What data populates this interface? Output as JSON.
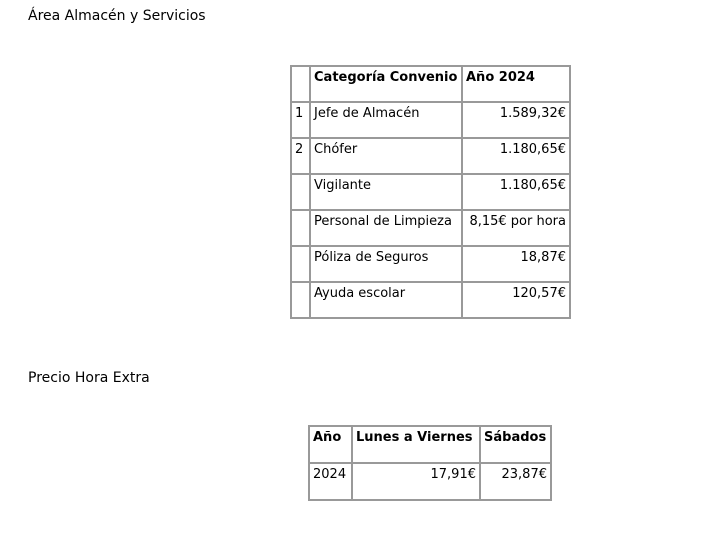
{
  "section1": {
    "title": "Área Almacén y Servicios",
    "table": {
      "headers": [
        "",
        "Categoría Convenio",
        "Año 2024"
      ],
      "rows": [
        [
          "1",
          "Jefe de Almacén",
          "1.589,32€"
        ],
        [
          "2",
          "Chófer",
          "1.180,65€"
        ],
        [
          "",
          "Vigilante",
          "1.180,65€"
        ],
        [
          "",
          "Personal de Limpieza",
          "8,15€ por hora"
        ],
        [
          "",
          "Póliza de Seguros",
          "18,87€"
        ],
        [
          "",
          "Ayuda escolar",
          "120,57€"
        ]
      ]
    }
  },
  "section2": {
    "title": "Precio Hora Extra",
    "table": {
      "headers": [
        "Año",
        "Lunes a Viernes",
        "Sábados"
      ],
      "rows": [
        [
          "2024",
          "17,91€",
          "23,87€"
        ]
      ]
    }
  }
}
